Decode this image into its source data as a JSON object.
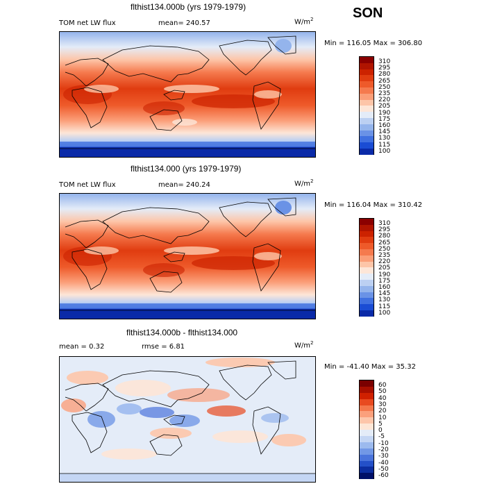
{
  "season": "SON",
  "panels": [
    {
      "title": "flthist134.000b (yrs 1979-1979)",
      "left_label": "TOM net LW flux",
      "mean_text": "mean= 240.57",
      "units_base": "W/m",
      "units_exp": "2",
      "minmax": "Min = 116.05 Max = 306.80",
      "colorbar_labels": [
        "310",
        "295",
        "280",
        "265",
        "250",
        "235",
        "220",
        "205",
        "190",
        "175",
        "160",
        "145",
        "130",
        "115",
        "100"
      ]
    },
    {
      "title": "flthist134.000 (yrs 1979-1979)",
      "left_label": "TOM net LW flux",
      "mean_text": "mean= 240.24",
      "units_base": "W/m",
      "units_exp": "2",
      "minmax": "Min = 116.04 Max = 310.42",
      "colorbar_labels": [
        "310",
        "295",
        "280",
        "265",
        "250",
        "235",
        "220",
        "205",
        "190",
        "175",
        "160",
        "145",
        "130",
        "115",
        "100"
      ]
    },
    {
      "title": "flthist134.000b - flthist134.000",
      "left_label": "mean =    0.32",
      "mean_text": "rmse =    6.81",
      "units_base": "W/m",
      "units_exp": "2",
      "minmax": "Min = -41.40 Max =  35.32",
      "colorbar_labels": [
        "60",
        "50",
        "40",
        "30",
        "20",
        "10",
        "5",
        "0",
        "-5",
        "-10",
        "-20",
        "-30",
        "-40",
        "-50",
        "-60"
      ]
    }
  ],
  "colors": {
    "abs_scale": [
      "#8b0000",
      "#b01400",
      "#cc2200",
      "#e03c10",
      "#ee5a2a",
      "#f57a4e",
      "#fb9e78",
      "#fdc5a8",
      "#fde6d8",
      "#e4ecf8",
      "#bcd0f2",
      "#94b4ec",
      "#6a92e6",
      "#4070e0",
      "#1a4cd4",
      "#0a2aa8",
      "#00106a"
    ],
    "diff_scale": [
      "#7a0000",
      "#a80f00",
      "#d02000",
      "#e84a20",
      "#f4784c",
      "#fba07c",
      "#fdc6aa",
      "#fde6d6",
      "#e4ecf8",
      "#c4d6f4",
      "#9cbaee",
      "#7298e6",
      "#4a74dc",
      "#2450c8",
      "#0c2ea0",
      "#001068"
    ]
  }
}
